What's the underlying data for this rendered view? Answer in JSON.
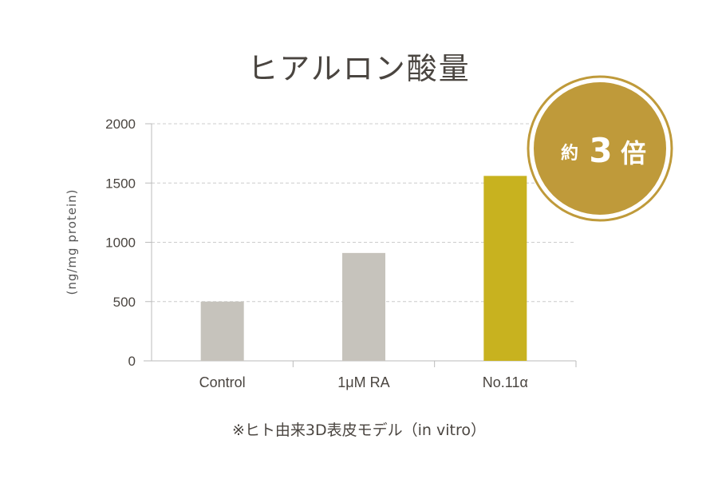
{
  "title": "ヒアルロン酸量",
  "footnote": "※ヒト由来3D表皮モデル（in vitro）",
  "badge": {
    "prefix": "約",
    "number": "3",
    "suffix": "倍"
  },
  "colors": {
    "bar_default": "#c6c3bc",
    "bar_highlight": "#c8b21f",
    "badge_fill": "#bf9a3a",
    "grid": "#cccccc"
  },
  "chart_data": {
    "type": "bar",
    "title": "ヒアルロン酸量",
    "xlabel": "",
    "ylabel": "(ng/mg protein)",
    "categories": [
      "Control",
      "1μM RA",
      "No.11α"
    ],
    "values": [
      500,
      910,
      1560
    ],
    "ylim": [
      0,
      2000
    ],
    "yticks": [
      0,
      500,
      1000,
      1500,
      2000
    ],
    "highlight_index": 2,
    "grid": true,
    "annotation": "約3倍"
  }
}
